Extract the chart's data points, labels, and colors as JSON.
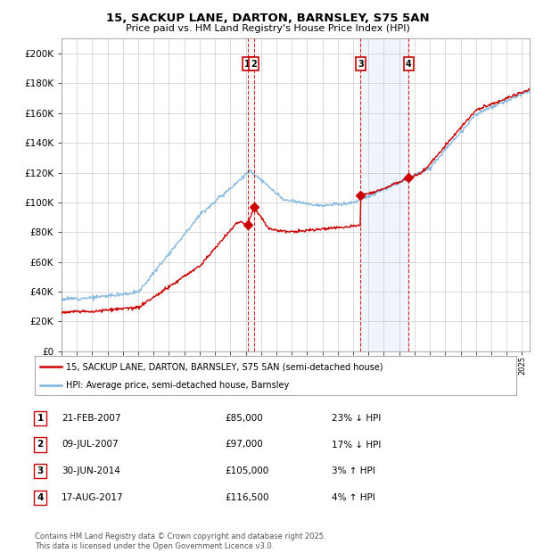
{
  "title": "15, SACKUP LANE, DARTON, BARNSLEY, S75 5AN",
  "subtitle": "Price paid vs. HM Land Registry's House Price Index (HPI)",
  "ylabel_ticks": [
    0,
    20000,
    40000,
    60000,
    80000,
    100000,
    120000,
    140000,
    160000,
    180000,
    200000
  ],
  "xmin": 1995,
  "xmax": 2025.5,
  "ymin": 0,
  "ymax": 210000,
  "hpi_color": "#7ab3de",
  "price_color": "#cc0000",
  "transaction_color": "#cc0000",
  "shade_color": "#ddeeff",
  "transactions": [
    {
      "num": 1,
      "year": 2007.13,
      "price": 85000,
      "label": "1"
    },
    {
      "num": 2,
      "year": 2007.52,
      "price": 97000,
      "label": "2"
    },
    {
      "num": 3,
      "year": 2014.49,
      "price": 105000,
      "label": "3"
    },
    {
      "num": 4,
      "year": 2017.62,
      "price": 116500,
      "label": "4"
    }
  ],
  "legend_entries": [
    "15, SACKUP LANE, DARTON, BARNSLEY, S75 5AN (semi-detached house)",
    "HPI: Average price, semi-detached house, Barnsley"
  ],
  "table_rows": [
    {
      "num": "1",
      "date": "21-FEB-2007",
      "price": "£85,000",
      "hpi": "23% ↓ HPI"
    },
    {
      "num": "2",
      "date": "09-JUL-2007",
      "price": "£97,000",
      "hpi": "17% ↓ HPI"
    },
    {
      "num": "3",
      "date": "30-JUN-2014",
      "price": "£105,000",
      "hpi": "3% ↑ HPI"
    },
    {
      "num": "4",
      "date": "17-AUG-2017",
      "price": "£116,500",
      "hpi": "4% ↑ HPI"
    }
  ],
  "footnote": "Contains HM Land Registry data © Crown copyright and database right 2025.\nThis data is licensed under the Open Government Licence v3.0.",
  "background_color": "#ffffff",
  "grid_color": "#cccccc"
}
